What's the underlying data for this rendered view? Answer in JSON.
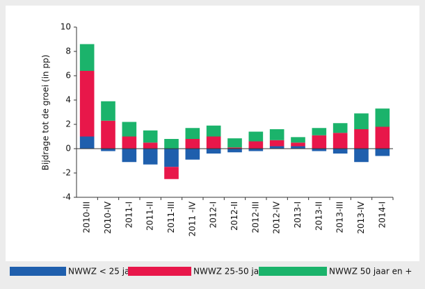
{
  "chart_data": {
    "type": "bar",
    "stacked": true,
    "y_label": "Bijdrage tot de groei (in pp)",
    "categories": [
      "2010-III",
      "2010-IV",
      "2011-I",
      "2011-II",
      "2011-III",
      "2011 -IV",
      "2012-I",
      "2012-II",
      "2012-III",
      "2012-IV",
      "2013-I",
      "2013-II",
      "2013-III",
      "2013-IV",
      "2014-I"
    ],
    "series": [
      {
        "name": "NWWZ < 25 jaar",
        "color": "#1f5fad",
        "values": [
          1.0,
          -0.2,
          -1.1,
          -1.3,
          -1.5,
          -0.9,
          -0.4,
          -0.3,
          -0.2,
          0.2,
          0.2,
          -0.2,
          -0.4,
          -1.1,
          -0.6
        ]
      },
      {
        "name": "NWWZ 25-50 jaar",
        "color": "#e8174a",
        "values": [
          5.4,
          2.3,
          1.0,
          0.5,
          -1.0,
          0.8,
          1.0,
          0.1,
          0.6,
          0.5,
          0.3,
          1.1,
          1.3,
          1.6,
          1.8
        ]
      },
      {
        "name": "NWWZ 50 jaar en +",
        "color": "#1bb36b",
        "values": [
          2.2,
          1.6,
          1.2,
          1.0,
          0.8,
          0.9,
          0.9,
          0.75,
          0.8,
          0.9,
          0.45,
          0.6,
          0.8,
          1.3,
          1.5
        ]
      }
    ],
    "ylim": [
      -4,
      10
    ],
    "yticks": [
      -4,
      -2,
      0,
      2,
      4,
      6,
      8,
      10
    ]
  }
}
